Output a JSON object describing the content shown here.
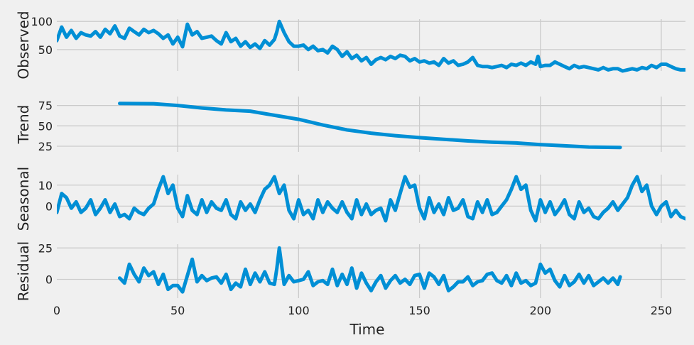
{
  "chart_data": {
    "type": "line",
    "xlabel": "Time",
    "xlim": [
      0,
      260
    ],
    "xticks": [
      0,
      50,
      100,
      150,
      200,
      250
    ],
    "colors": {
      "series": "#008fd5",
      "background": "#f0f0f0",
      "grid": "#cbcbcb"
    },
    "grid": true,
    "panels": [
      {
        "ylabel": "Observed",
        "ylim": [
          12,
          104
        ],
        "yticks": [
          50,
          100
        ],
        "series": [
          {
            "x": [
              0,
              2,
              4,
              6,
              8,
              10,
              12,
              14,
              16,
              18,
              20,
              22,
              24,
              26,
              28,
              30,
              32,
              34,
              36,
              38,
              40,
              42,
              44,
              46,
              48,
              50,
              52,
              54,
              56,
              58,
              60,
              62,
              64,
              66,
              68,
              70,
              72,
              74,
              76,
              78,
              80,
              82,
              84,
              86,
              88,
              90,
              91,
              92,
              94,
              96,
              98,
              100,
              102,
              104,
              106,
              108,
              110,
              112,
              114,
              116,
              118,
              120,
              122,
              124,
              126,
              128,
              130,
              132,
              134,
              136,
              138,
              140,
              142,
              144,
              146,
              148,
              150,
              152,
              154,
              156,
              158,
              160,
              162,
              164,
              166,
              168,
              170,
              172,
              174,
              176,
              178,
              180,
              182,
              184,
              186,
              188,
              190,
              192,
              194,
              196,
              198,
              199,
              200,
              202,
              204,
              206,
              208,
              210,
              212,
              214,
              216,
              218,
              220,
              222,
              224,
              226,
              228,
              230,
              232,
              234,
              236,
              238,
              240,
              242,
              244,
              246,
              248,
              250,
              252,
              254,
              256,
              258,
              260
            ],
            "y": [
              66,
              90,
              72,
              84,
              70,
              80,
              76,
              74,
              82,
              72,
              86,
              78,
              92,
              74,
              70,
              88,
              82,
              76,
              86,
              80,
              84,
              78,
              70,
              76,
              60,
              72,
              55,
              95,
              76,
              82,
              70,
              72,
              74,
              66,
              60,
              80,
              64,
              70,
              56,
              64,
              54,
              60,
              52,
              66,
              58,
              68,
              82,
              100,
              80,
              64,
              56,
              56,
              58,
              50,
              56,
              48,
              50,
              44,
              56,
              50,
              38,
              46,
              34,
              40,
              30,
              36,
              24,
              32,
              36,
              32,
              38,
              34,
              40,
              38,
              30,
              34,
              28,
              30,
              26,
              28,
              22,
              34,
              26,
              30,
              22,
              24,
              28,
              36,
              22,
              20,
              20,
              18,
              20,
              22,
              18,
              24,
              22,
              26,
              22,
              28,
              24,
              38,
              20,
              22,
              22,
              28,
              24,
              20,
              16,
              22,
              18,
              20,
              18,
              16,
              14,
              18,
              14,
              16,
              16,
              12,
              14,
              16,
              14,
              18,
              16,
              22,
              18,
              24,
              24,
              20,
              16,
              14,
              14
            ]
          }
        ]
      },
      {
        "ylabel": "Trend",
        "ylim": [
          18,
          86
        ],
        "yticks": [
          25,
          50,
          75
        ],
        "series": [
          {
            "x": [
              26,
              40,
              50,
              60,
              70,
              80,
              90,
              100,
              110,
              120,
              130,
              140,
              150,
              160,
              170,
              180,
              190,
              200,
              210,
              220,
              233
            ],
            "y": [
              77.5,
              77.2,
              75,
              72,
              69.5,
              68,
              63,
              58,
              51,
              45,
              41,
              38,
              35.5,
              33.5,
              31.5,
              30,
              29,
              27,
              25.5,
              24,
              23.5
            ]
          }
        ]
      },
      {
        "ylabel": "Seasonal",
        "ylim": [
          -8,
          15
        ],
        "yticks": [
          0,
          10
        ],
        "series": [
          {
            "x": [
              0,
              2,
              4,
              6,
              8,
              10,
              12,
              14,
              16,
              18,
              20,
              22,
              24,
              26,
              28,
              30,
              32,
              34,
              36,
              38,
              40,
              42,
              44,
              46,
              48,
              50,
              52,
              54,
              56,
              58,
              60,
              62,
              64,
              66,
              68,
              70,
              72,
              74,
              76,
              78,
              80,
              82,
              84,
              86,
              88,
              90,
              92,
              94,
              96,
              98,
              100,
              102,
              104,
              106,
              108,
              110,
              112,
              114,
              116,
              118,
              120,
              122,
              124,
              126,
              128,
              130,
              132,
              134,
              136,
              138,
              140,
              142,
              144,
              146,
              148,
              150,
              152,
              154,
              156,
              158,
              160,
              162,
              164,
              166,
              168,
              170,
              172,
              174,
              176,
              178,
              180,
              182,
              184,
              186,
              188,
              190,
              192,
              194,
              196,
              198,
              200,
              202,
              204,
              206,
              208,
              210,
              212,
              214,
              216,
              218,
              220,
              222,
              224,
              226,
              228,
              230,
              232,
              234,
              236,
              238,
              240,
              242,
              244,
              246,
              248,
              250,
              252,
              254,
              256,
              258,
              260
            ],
            "y": [
              -3,
              6,
              4,
              -1,
              2,
              -3,
              -1,
              3,
              -4,
              -1,
              3,
              -3,
              1,
              -5,
              -4,
              -6,
              -1,
              -3,
              -4,
              -1,
              1,
              8,
              14,
              6,
              10,
              -1,
              -5,
              5,
              -2,
              -4,
              3,
              -3,
              2,
              -1,
              -2,
              3,
              -4,
              -6,
              2,
              -2,
              1,
              -3,
              3,
              8,
              10,
              14,
              6,
              10,
              -2,
              -6,
              3,
              -4,
              -2,
              -6,
              3,
              -3,
              2,
              -1,
              -3,
              2,
              -3,
              -6,
              3,
              -4,
              1,
              -4,
              -2,
              -1,
              -7,
              3,
              -2,
              6,
              14,
              9,
              10,
              -1,
              -6,
              4,
              -3,
              1,
              -4,
              4,
              -2,
              -1,
              3,
              -5,
              -6,
              2,
              -3,
              3,
              -4,
              -3,
              0,
              3,
              8,
              14,
              8,
              10,
              -2,
              -7,
              3,
              -3,
              2,
              -4,
              -1,
              3,
              -4,
              -6,
              2,
              -3,
              -1,
              -5,
              -6,
              -3,
              -1,
              2,
              -2,
              1,
              4,
              10,
              14,
              7,
              10,
              0,
              -4,
              0,
              2,
              -5,
              -2,
              -5,
              -6
            ]
          }
        ]
      },
      {
        "ylabel": "Residual",
        "ylim": [
          -15,
          28
        ],
        "yticks": [
          0,
          25
        ],
        "series": [
          {
            "x": [
              26,
              28,
              30,
              32,
              34,
              36,
              38,
              40,
              42,
              44,
              46,
              48,
              50,
              52,
              54,
              56,
              58,
              60,
              62,
              64,
              66,
              68,
              70,
              72,
              74,
              76,
              78,
              80,
              82,
              84,
              86,
              88,
              90,
              91,
              92,
              94,
              96,
              98,
              100,
              102,
              104,
              106,
              108,
              110,
              112,
              114,
              116,
              118,
              120,
              122,
              124,
              126,
              128,
              130,
              132,
              134,
              136,
              138,
              140,
              142,
              144,
              146,
              148,
              150,
              152,
              154,
              156,
              158,
              160,
              162,
              164,
              166,
              168,
              170,
              172,
              174,
              176,
              178,
              180,
              182,
              184,
              186,
              188,
              190,
              192,
              194,
              196,
              198,
              200,
              202,
              204,
              206,
              208,
              210,
              212,
              214,
              216,
              218,
              220,
              222,
              224,
              226,
              228,
              230,
              232,
              233
            ],
            "y": [
              1,
              -3,
              12,
              4,
              -2,
              9,
              3,
              6,
              -4,
              4,
              -8,
              -5,
              -5,
              -10,
              3,
              16,
              -2,
              3,
              -1,
              1,
              2,
              -3,
              4,
              -8,
              -3,
              -6,
              8,
              -4,
              5,
              -2,
              6,
              -3,
              -4,
              9,
              25,
              -4,
              3,
              -2,
              -1,
              0,
              6,
              -5,
              -2,
              -1,
              -4,
              8,
              -5,
              4,
              -4,
              9,
              -7,
              5,
              -3,
              -9,
              -2,
              3,
              -7,
              -1,
              3,
              -3,
              0,
              -4,
              3,
              4,
              -7,
              5,
              2,
              -4,
              3,
              -9,
              -6,
              -2,
              -2,
              2,
              -5,
              -2,
              -1,
              4,
              5,
              -1,
              -3,
              3,
              -5,
              5,
              -3,
              -1,
              -5,
              -3,
              12,
              5,
              8,
              -1,
              -6,
              3,
              -5,
              -2,
              4,
              -3,
              3,
              -5,
              -2,
              1,
              -3,
              1,
              -4,
              2
            ]
          }
        ]
      }
    ]
  }
}
